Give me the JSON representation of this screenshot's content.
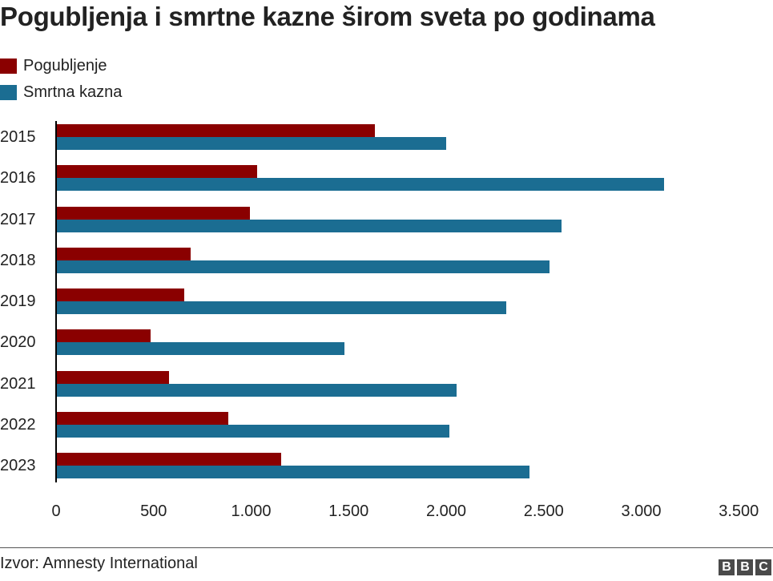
{
  "title": "Pogubljenja i smrtne kazne širom sveta po godinama",
  "legend": [
    {
      "label": "Pogubljenje",
      "color": "#8a0000"
    },
    {
      "label": "Smrtna kazna",
      "color": "#1b6d92"
    }
  ],
  "source": "Izvor: Amnesty International",
  "logo": {
    "letters": [
      "B",
      "B",
      "C"
    ]
  },
  "chart_data": {
    "type": "bar",
    "orientation": "horizontal",
    "title": "Pogubljenja i smrtne kazne širom sveta po godinama",
    "categories": [
      "2015",
      "2016",
      "2017",
      "2018",
      "2019",
      "2020",
      "2021",
      "2022",
      "2023"
    ],
    "series": [
      {
        "name": "Pogubljenje",
        "color": "#8a0000",
        "values": [
          1634,
          1032,
          993,
          690,
          657,
          483,
          579,
          883,
          1153
        ]
      },
      {
        "name": "Smrtna kazna",
        "color": "#1b6d92",
        "values": [
          1998,
          3117,
          2591,
          2531,
          2307,
          1477,
          2052,
          2016,
          2428
        ]
      }
    ],
    "xlabel": "",
    "ylabel": "",
    "xlim": [
      0,
      3500
    ],
    "x_ticks": [
      0,
      500,
      1000,
      1500,
      2000,
      2500,
      3000,
      3500
    ],
    "x_tick_labels": [
      "0",
      "500",
      "1.000",
      "1.500",
      "2.000",
      "2.500",
      "3.000",
      "3.500"
    ],
    "grid": false,
    "legend_position": "top-left",
    "source": "Izvor: Amnesty International"
  }
}
